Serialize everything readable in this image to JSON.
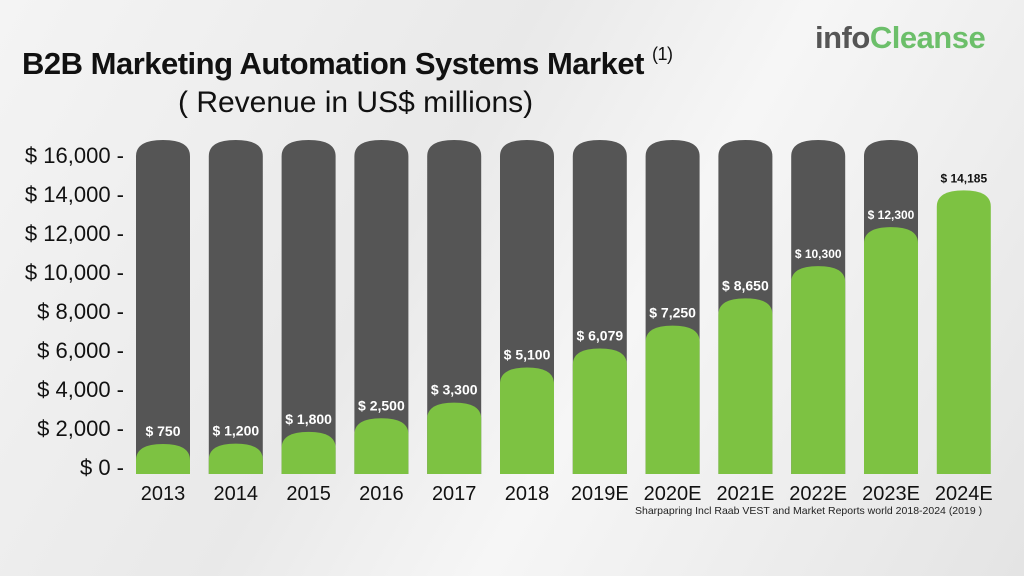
{
  "logo": {
    "part1": "info",
    "part2": "Cleanse"
  },
  "chart_data": {
    "type": "bar",
    "title": "B2B Marketing Automation Systems Market",
    "title_footnote": "(1)",
    "subtitle": "( Revenue in US$ millions)",
    "categories": [
      "2013",
      "2014",
      "2015",
      "2016",
      "2017",
      "2018",
      "2019E",
      "2020E",
      "2021E",
      "2022E",
      "2023E",
      "2024E"
    ],
    "values": [
      750,
      1200,
      1800,
      2500,
      3300,
      5100,
      6079,
      7250,
      8650,
      10300,
      12300,
      14185
    ],
    "data_labels": [
      "$ 750",
      "$ 1,200",
      "$ 1,800",
      "$ 2,500",
      "$ 3,300",
      "$ 5,100",
      "$ 6,079",
      "$ 7,250",
      "$ 8,650",
      "$ 10,300",
      "$ 12,300",
      "$ 14,185"
    ],
    "yticks": [
      0,
      2000,
      4000,
      6000,
      8000,
      10000,
      12000,
      14000,
      16000
    ],
    "ytick_labels": [
      "$ 0 -",
      "$ 2,000 -",
      "$ 4,000 -",
      "$ 6,000 -",
      "$ 8,000 -",
      "$ 10,000 -",
      "$ 12,000 -",
      "$ 14,000 -",
      "$ 16,000 -"
    ],
    "ylim": [
      0,
      16000
    ],
    "grid": false,
    "colors": {
      "bar": "#7dc242",
      "track": "#555555"
    },
    "source": "Sharpapring Incl Raab VEST and Market Reports world 2018-2024 (2019 )"
  }
}
